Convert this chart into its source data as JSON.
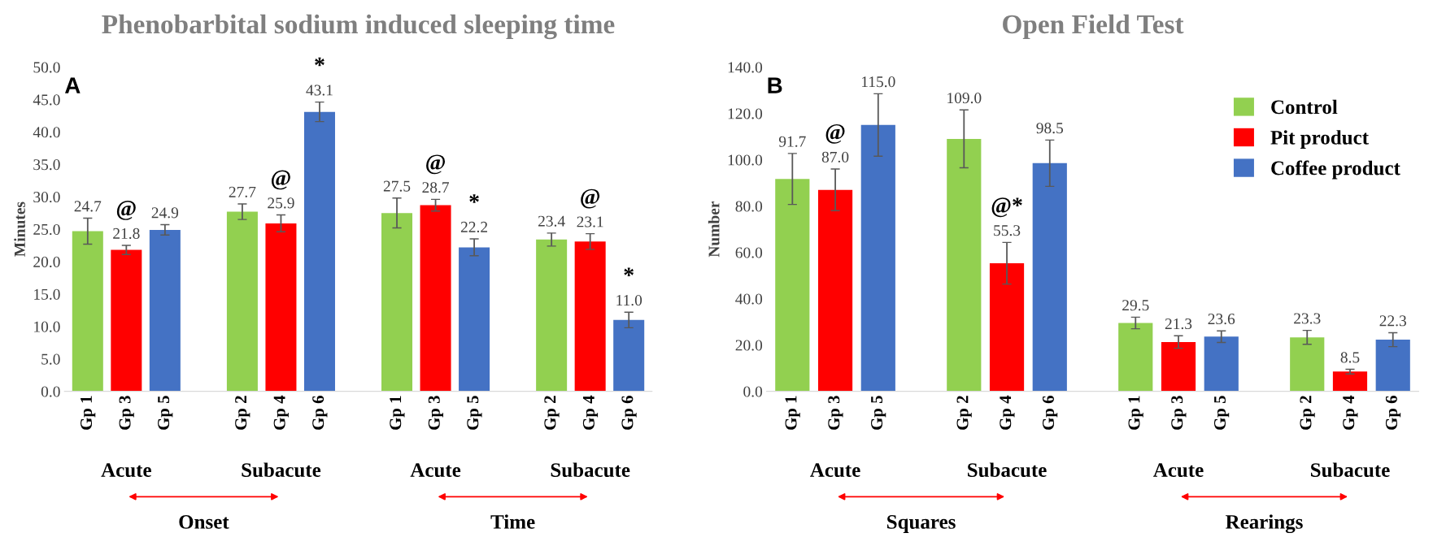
{
  "chart_data": [
    {
      "type": "bar",
      "title": "Phenobarbital sodium induced sleeping time",
      "ylabel": "Minutes",
      "categories": [
        "Gp 1",
        "Gp 3",
        "Gp 5",
        null,
        "Gp 2",
        "Gp 4",
        "Gp 6",
        null,
        "Gp 1",
        "Gp 3",
        "Gp 5",
        null,
        "Gp 2",
        "Gp 4",
        "Gp 6"
      ],
      "series": [
        {
          "color": "#92d050",
          "value_labels": [
            "24.7",
            null,
            null,
            null,
            "27.7",
            null,
            null,
            null,
            "27.5",
            null,
            null,
            null,
            "23.4",
            null,
            null
          ],
          "values": [
            24.7,
            null,
            null,
            null,
            27.7,
            null,
            null,
            null,
            27.5,
            null,
            null,
            null,
            23.4,
            null,
            null
          ],
          "errors": [
            2.0,
            null,
            null,
            null,
            1.2,
            null,
            null,
            null,
            2.3,
            null,
            null,
            null,
            1.0,
            null,
            null
          ]
        },
        {
          "color": "#ff0000",
          "value_labels": [
            null,
            "21.8",
            null,
            null,
            null,
            "25.9",
            null,
            null,
            null,
            "28.7",
            null,
            null,
            null,
            "23.1",
            null
          ],
          "values": [
            null,
            21.8,
            null,
            null,
            null,
            25.9,
            null,
            null,
            null,
            28.7,
            null,
            null,
            null,
            23.1,
            null
          ],
          "errors": [
            null,
            0.7,
            null,
            null,
            null,
            1.3,
            null,
            null,
            null,
            0.9,
            null,
            null,
            null,
            1.2,
            null
          ]
        },
        {
          "color": "#4472c4",
          "value_labels": [
            null,
            null,
            "24.9",
            null,
            null,
            null,
            "43.1",
            null,
            null,
            null,
            "22.2",
            null,
            null,
            null,
            "11.0"
          ],
          "values": [
            null,
            null,
            24.9,
            null,
            null,
            null,
            43.1,
            null,
            null,
            null,
            22.2,
            null,
            null,
            null,
            11.0
          ],
          "errors": [
            null,
            null,
            0.8,
            null,
            null,
            null,
            1.5,
            null,
            null,
            null,
            1.3,
            null,
            null,
            null,
            1.2
          ]
        }
      ],
      "ylim": [
        0,
        50
      ],
      "yticks": [
        {
          "value": 0,
          "label": "0.0"
        },
        {
          "value": 5,
          "label": "5.0"
        },
        {
          "value": 10,
          "label": "10.0"
        },
        {
          "value": 15,
          "label": "15.0"
        },
        {
          "value": 20,
          "label": "20.0"
        },
        {
          "value": 25,
          "label": "25.0"
        },
        {
          "value": 30,
          "label": "30.0"
        },
        {
          "value": 35,
          "label": "35.0"
        },
        {
          "value": 40,
          "label": "40.0"
        },
        {
          "value": 45,
          "label": "45.0"
        },
        {
          "value": 50,
          "label": "50.0"
        }
      ],
      "grid": false,
      "legend": false,
      "annotations": [
        "A",
        "Acute",
        "Subacute",
        "Acute",
        "Subacute",
        "Onset",
        "Time",
        "@",
        "@",
        "*",
        "@",
        "*",
        "@",
        "*"
      ]
    },
    {
      "type": "bar",
      "title": "Open Field Test",
      "ylabel": "Number",
      "categories": [
        "Gp 1",
        "Gp 3",
        "Gp 5",
        null,
        "Gp 2",
        "Gp 4",
        "Gp 6",
        null,
        "Gp 1",
        "Gp 3",
        "Gp 5",
        null,
        "Gp 2",
        "Gp 4",
        "Gp 6"
      ],
      "series": [
        {
          "name": "Control",
          "color": "#92d050",
          "value_labels": [
            "91.7",
            null,
            null,
            null,
            "109.0",
            null,
            null,
            null,
            "29.5",
            null,
            null,
            null,
            "23.3",
            null,
            null
          ],
          "values": [
            91.7,
            null,
            null,
            null,
            109.0,
            null,
            null,
            null,
            29.5,
            null,
            null,
            null,
            23.3,
            null,
            null
          ],
          "errors": [
            11,
            null,
            null,
            null,
            12.5,
            null,
            null,
            null,
            2.5,
            null,
            null,
            null,
            3,
            null,
            null
          ]
        },
        {
          "name": "Pit product",
          "color": "#ff0000",
          "value_labels": [
            null,
            "87.0",
            null,
            null,
            null,
            "55.3",
            null,
            null,
            null,
            "21.3",
            null,
            null,
            null,
            "8.5",
            null
          ],
          "values": [
            null,
            87.0,
            null,
            null,
            null,
            55.3,
            null,
            null,
            null,
            21.3,
            null,
            null,
            null,
            8.5,
            null
          ],
          "errors": [
            null,
            9,
            null,
            null,
            null,
            9,
            null,
            null,
            null,
            2.7,
            null,
            null,
            null,
            1,
            null
          ]
        },
        {
          "name": "Coffee product",
          "color": "#4472c4",
          "value_labels": [
            null,
            null,
            "115.0",
            null,
            null,
            null,
            "98.5",
            null,
            null,
            null,
            "23.6",
            null,
            null,
            null,
            "22.3"
          ],
          "values": [
            null,
            null,
            115.0,
            null,
            null,
            null,
            98.5,
            null,
            null,
            null,
            23.6,
            null,
            null,
            null,
            22.3
          ],
          "errors": [
            null,
            null,
            13.5,
            null,
            null,
            null,
            10,
            null,
            null,
            null,
            2.5,
            null,
            null,
            null,
            3
          ]
        }
      ],
      "ylim": [
        0,
        140
      ],
      "yticks": [
        {
          "value": 0,
          "label": "0.0"
        },
        {
          "value": 20,
          "label": "20.0"
        },
        {
          "value": 40,
          "label": "40.0"
        },
        {
          "value": 60,
          "label": "60.0"
        },
        {
          "value": 80,
          "label": "80.0"
        },
        {
          "value": 100,
          "label": "100.0"
        },
        {
          "value": 120,
          "label": "120.0"
        },
        {
          "value": 140,
          "label": "140.0"
        }
      ],
      "grid": false,
      "legend": "right",
      "annotations": [
        "B",
        "Acute",
        "Subacute",
        "Acute",
        "Subacute",
        "Squares",
        "Rearings",
        "@",
        "@*"
      ]
    }
  ]
}
